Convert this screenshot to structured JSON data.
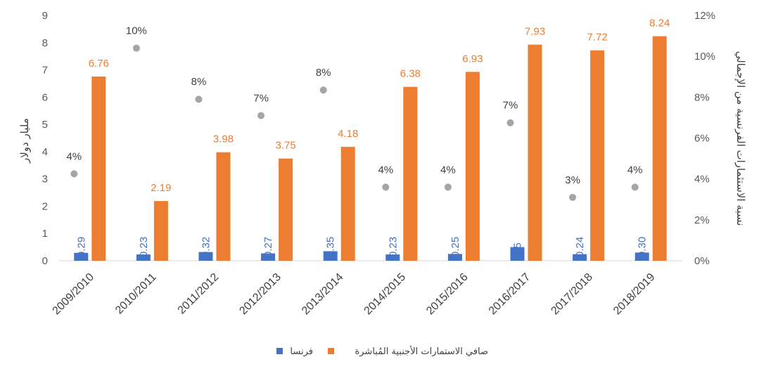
{
  "chart_data": {
    "type": "bar",
    "categories": [
      "2009/2010",
      "2010/2011",
      "2011/2012",
      "2012/2013",
      "2013/2014",
      "2014/2015",
      "2015/2016",
      "2016/2017",
      "2017/2018",
      "2018/2019"
    ],
    "series": [
      {
        "name": "فرنسا",
        "color": "#4472C4",
        "values": [
          0.29,
          0.23,
          0.32,
          0.27,
          0.35,
          0.23,
          0.25,
          0.5,
          0.24,
          0.3
        ],
        "labels": [
          "0.29",
          "0.23",
          "0.32",
          "0.27",
          "0.35",
          "0.23",
          "0.25",
          "0.5",
          "0.24",
          "0.30"
        ]
      },
      {
        "name": "صافي الاستمارات الأجنبية المُباشرة",
        "color": "#ED7D31",
        "values": [
          6.76,
          2.19,
          3.98,
          3.75,
          4.18,
          6.38,
          6.93,
          7.93,
          7.72,
          8.24
        ],
        "labels": [
          "6.76",
          "2.19",
          "3.98",
          "3.75",
          "4.18",
          "6.38",
          "6.93",
          "7.93",
          "7.72",
          "8.24"
        ]
      }
    ],
    "secondary_series": {
      "type": "scatter",
      "color": "#A5A5A5",
      "values": [
        4.25,
        10.4,
        7.9,
        7.1,
        8.35,
        3.6,
        3.6,
        6.75,
        3.1,
        3.6
      ],
      "labels": [
        "4%",
        "10%",
        "8%",
        "7%",
        "8%",
        "4%",
        "4%",
        "7%",
        "3%",
        "4%"
      ]
    },
    "ylabel": "مليار دولار",
    "y2label": "نسبة الاستثمارات الفرنسية من الإجمالي",
    "ylim": [
      0,
      9
    ],
    "y2lim": [
      0,
      12
    ],
    "yticks": [
      "0",
      "1",
      "2",
      "3",
      "4",
      "5",
      "6",
      "7",
      "8",
      "9"
    ],
    "y2ticks": [
      "0%",
      "2%",
      "4%",
      "6%",
      "8%",
      "10%",
      "12%"
    ],
    "grid": false,
    "legend_position": "bottom"
  }
}
